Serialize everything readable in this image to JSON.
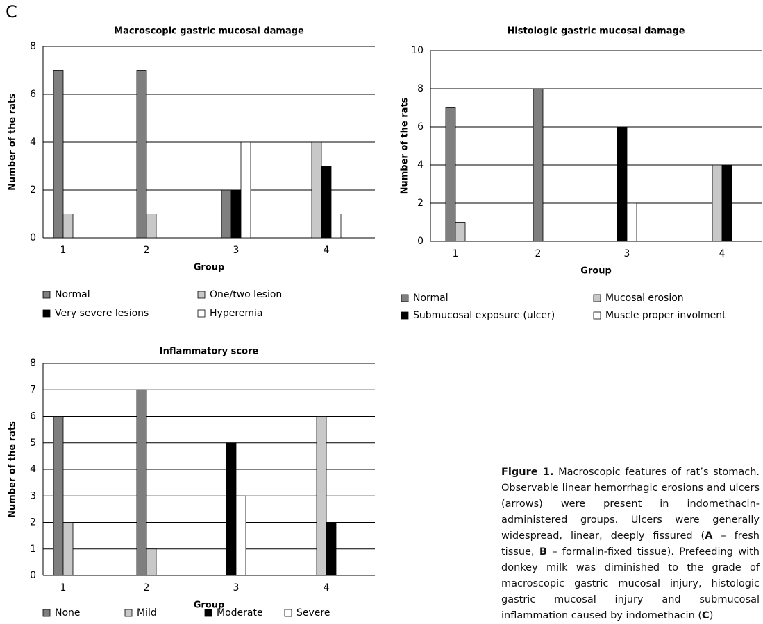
{
  "panel_label": "C",
  "chart_data": [
    {
      "type": "bar",
      "title": "Macroscopic gastric mucosal damage",
      "x_label": "Group",
      "y_label": "Number of the rats",
      "categories": [
        "1",
        "2",
        "3",
        "4"
      ],
      "series": [
        {
          "name": "Normal",
          "color": "#7f7f7f",
          "values": [
            7,
            7,
            2,
            0
          ]
        },
        {
          "name": "One/two lesion",
          "color": "#c8c8c8",
          "values": [
            1,
            1,
            0,
            4
          ]
        },
        {
          "name": "Very severe lesions",
          "color": "#000000",
          "values": [
            0,
            0,
            2,
            3
          ]
        },
        {
          "name": "Hyperemia",
          "color": "#ffffff",
          "values": [
            0,
            0,
            4,
            1
          ]
        }
      ],
      "ylim": [
        0,
        8
      ],
      "yticks": [
        0,
        2,
        4,
        6,
        8
      ],
      "grid": true
    },
    {
      "type": "bar",
      "title": "Histologic gastric mucosal damage",
      "x_label": "Group",
      "y_label": "Number of the rats",
      "categories": [
        "1",
        "2",
        "3",
        "4"
      ],
      "series": [
        {
          "name": "Normal",
          "color": "#7f7f7f",
          "values": [
            7,
            8,
            0,
            0
          ]
        },
        {
          "name": "Mucosal erosion",
          "color": "#c8c8c8",
          "values": [
            1,
            0,
            0,
            4
          ]
        },
        {
          "name": "Submucosal exposure (ulcer)",
          "color": "#000000",
          "values": [
            0,
            0,
            6,
            4
          ]
        },
        {
          "name": "Muscle proper involment",
          "color": "#ffffff",
          "values": [
            0,
            0,
            2,
            0
          ]
        }
      ],
      "ylim": [
        0,
        10
      ],
      "yticks": [
        0,
        2,
        4,
        6,
        8,
        10
      ],
      "grid": true
    },
    {
      "type": "bar",
      "title": "Inflammatory score",
      "x_label": "Group",
      "y_label": "Number of the rats",
      "categories": [
        "1",
        "2",
        "3",
        "4"
      ],
      "series": [
        {
          "name": "None",
          "color": "#7f7f7f",
          "values": [
            6,
            7,
            0,
            0
          ]
        },
        {
          "name": "Mild",
          "color": "#c8c8c8",
          "values": [
            2,
            1,
            0,
            6
          ]
        },
        {
          "name": "Moderate",
          "color": "#000000",
          "values": [
            0,
            0,
            5,
            2
          ]
        },
        {
          "name": "Severe",
          "color": "#ffffff",
          "values": [
            0,
            0,
            3,
            0
          ]
        }
      ],
      "ylim": [
        0,
        8
      ],
      "yticks": [
        0,
        1,
        2,
        3,
        4,
        5,
        6,
        7,
        8
      ],
      "grid": true
    }
  ],
  "caption": {
    "label": "Figure 1.",
    "parts": [
      "Macroscopic features of rat’s stomach. Observable linear hemorrhagic erosions and ulcers (arrows) were present in indomethacin-administered groups. Ulcers were generally widespread, linear, deeply fissured (",
      "A",
      " – fresh tissue, ",
      "B",
      " – formalin-fixed tissue). Prefeeding with donkey milk was diminished to the grade of macroscopic gastric mucosal injury, histologic gastric mucosal injury and submucosal inflammation caused by indomethacin (",
      "C",
      ")"
    ]
  }
}
